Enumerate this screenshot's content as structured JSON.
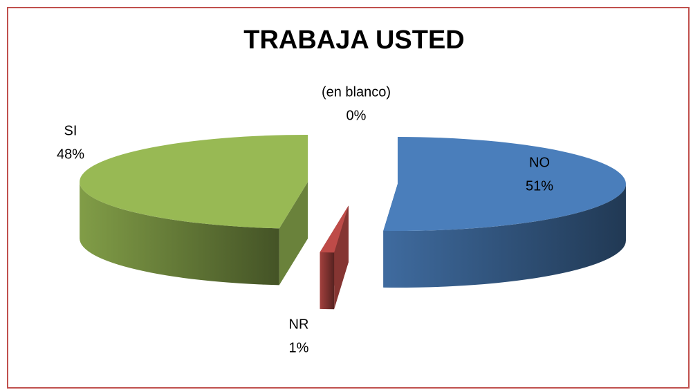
{
  "chart_data": {
    "type": "pie",
    "title": "TRABAJA USTED",
    "categories": [
      "NO",
      "NR",
      "SI",
      "(en blanco)"
    ],
    "values": [
      51,
      1,
      48,
      0
    ],
    "value_labels": [
      "51%",
      "1%",
      "48%",
      "0%"
    ],
    "colors": [
      "#4a7ebb",
      "#be4b48",
      "#98b954",
      "#8064a2"
    ]
  }
}
